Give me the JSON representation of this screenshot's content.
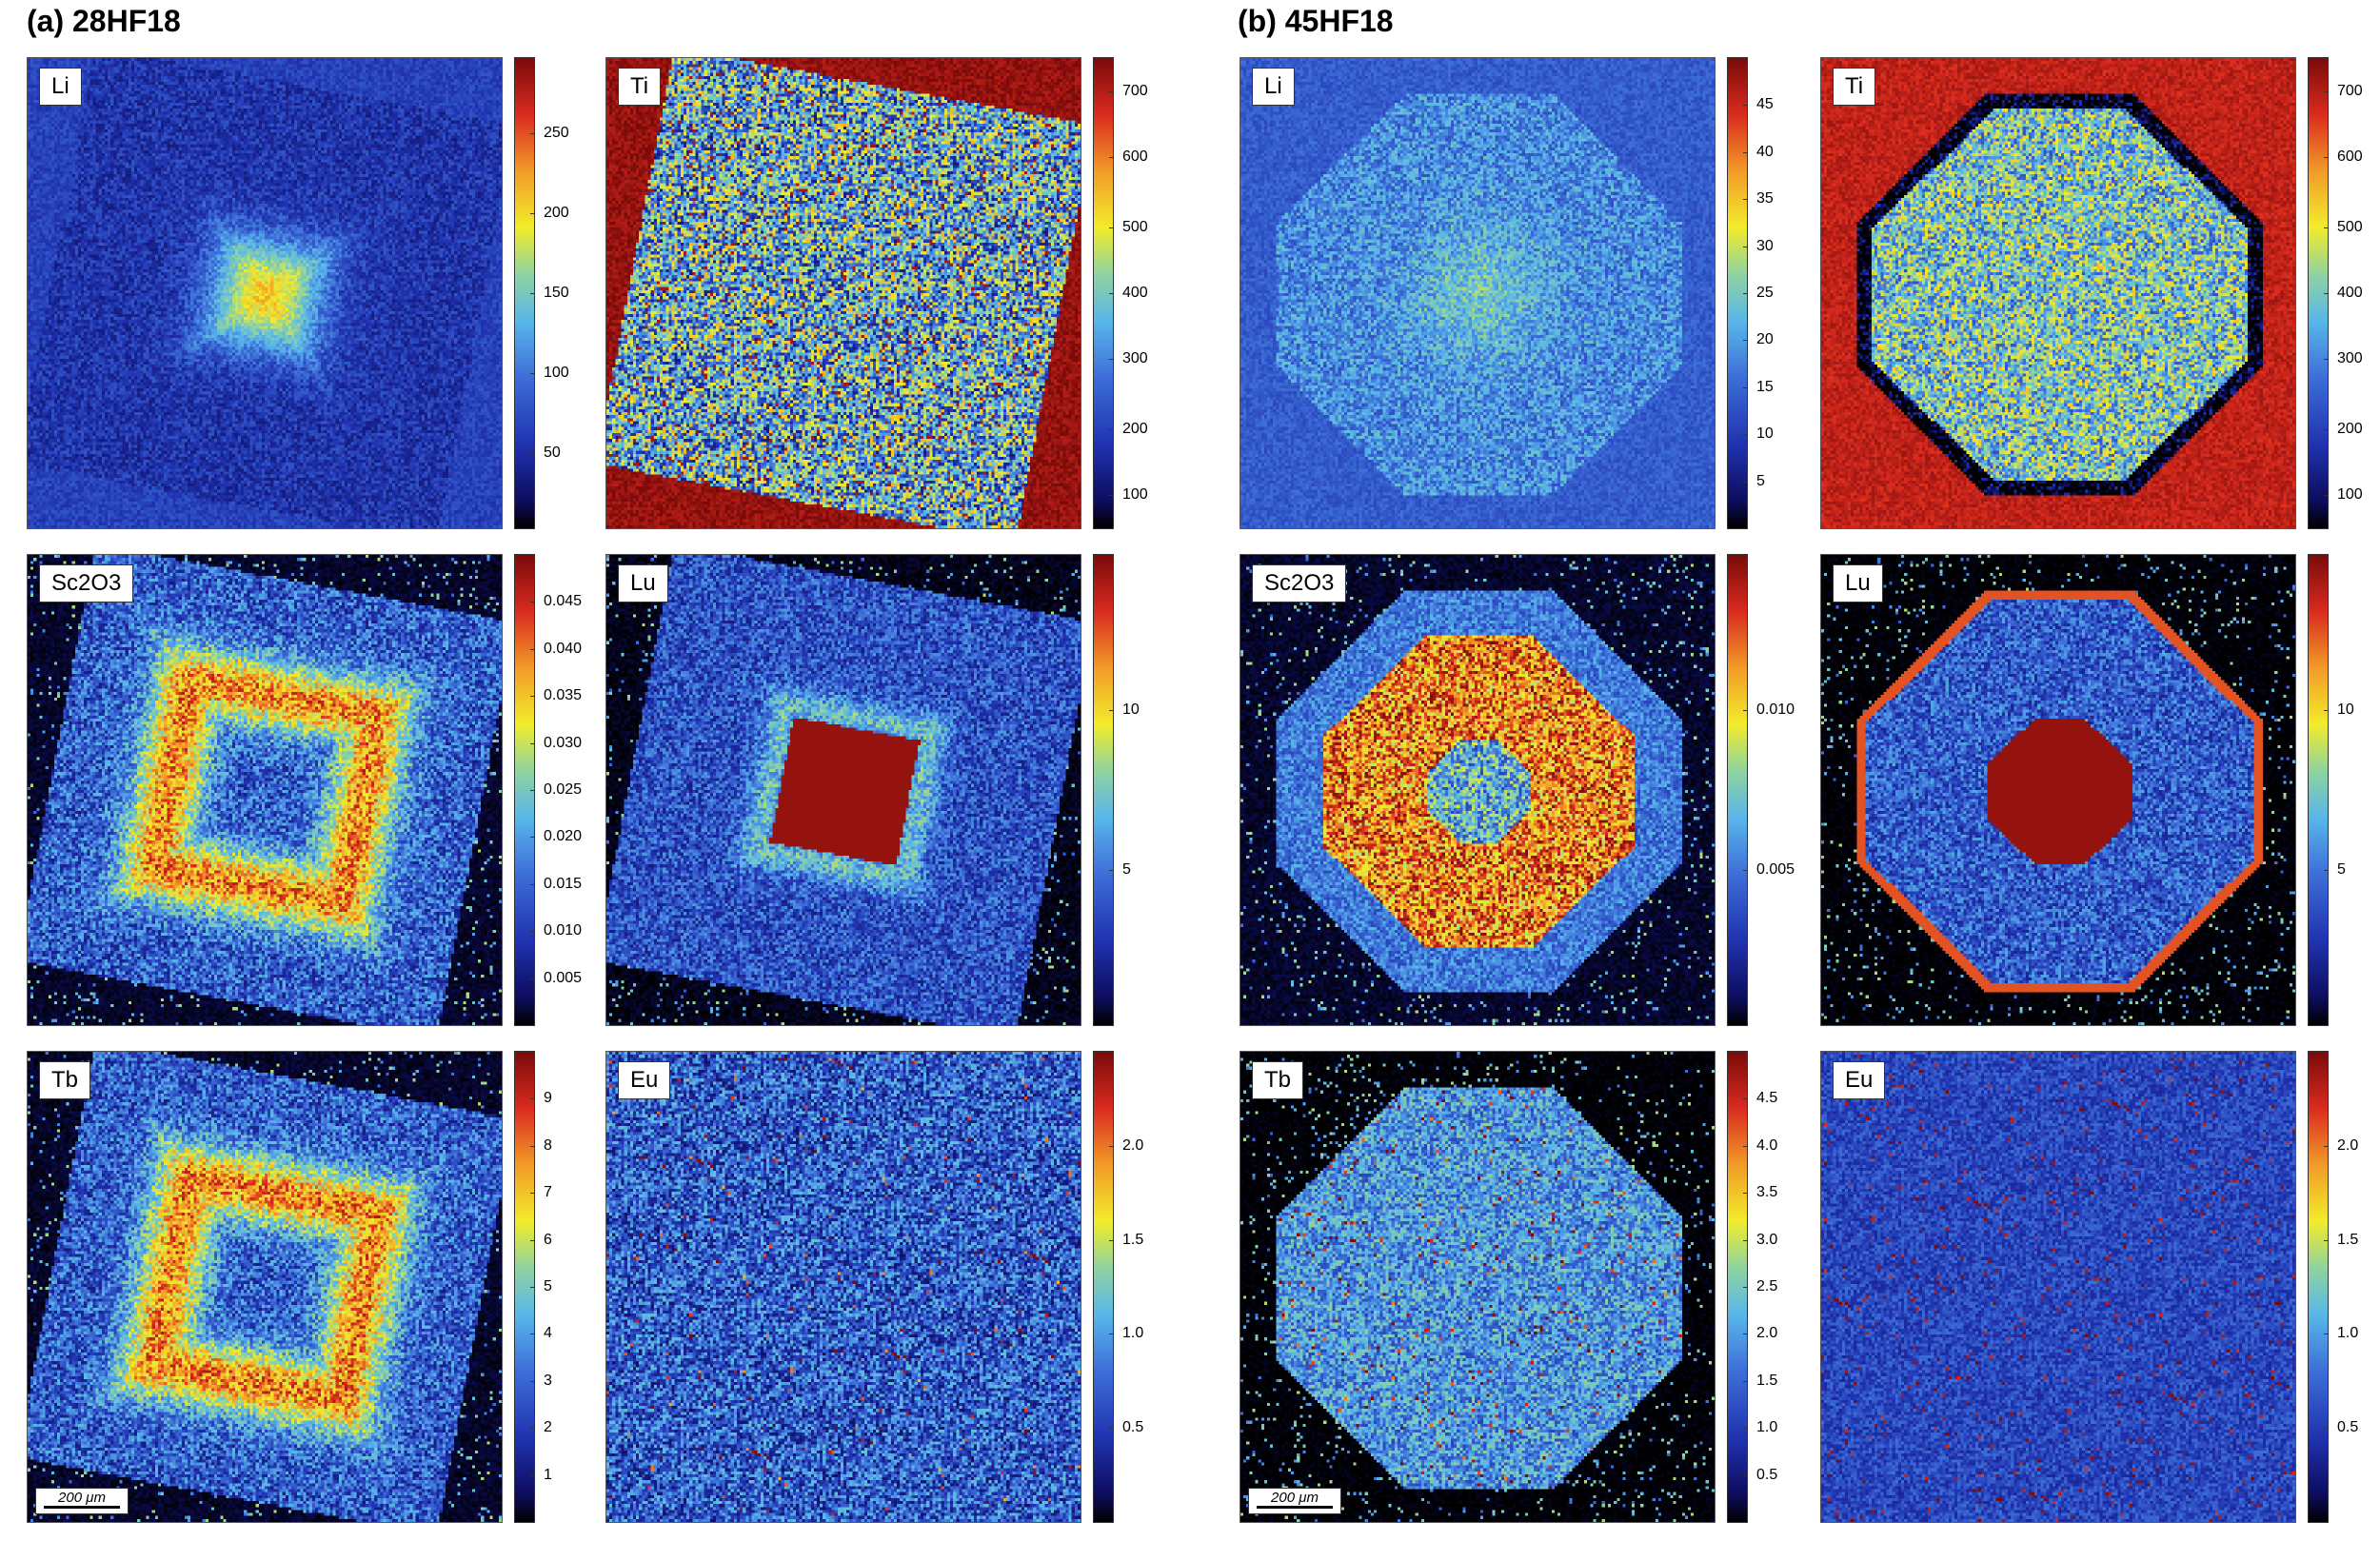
{
  "figure": {
    "panels": [
      {
        "id": "a",
        "title": "(a) 28HF18"
      },
      {
        "id": "b",
        "title": "(b) 45HF18"
      }
    ],
    "scalebar_label": "200 μm",
    "colormap": [
      "#000000",
      "#0d0d60",
      "#2033b0",
      "#3d6ed8",
      "#58b6ea",
      "#8fd3a0",
      "#f2ec2a",
      "#f29a28",
      "#d92b1e",
      "#7a0a0a"
    ],
    "maps": [
      {
        "panel": "a",
        "element": "Li",
        "ticks": [
          "50",
          "100",
          "150",
          "200",
          "250"
        ],
        "tickfrac": [
          0.16,
          0.33,
          0.5,
          0.67,
          0.84
        ],
        "pattern": "core",
        "shape": "square",
        "bg_level": 0.25
      },
      {
        "panel": "a",
        "element": "Ti",
        "ticks": [
          "100",
          "200",
          "300",
          "400",
          "500",
          "600",
          "700"
        ],
        "tickfrac": [
          0.07,
          0.21,
          0.36,
          0.5,
          0.64,
          0.79,
          0.93
        ],
        "pattern": "uniform_high",
        "shape": "square",
        "bg_level": 0.97
      },
      {
        "panel": "a",
        "element": "Sc2O3",
        "ticks": [
          "0.005",
          "0.010",
          "0.015",
          "0.020",
          "0.025",
          "0.030",
          "0.035",
          "0.040",
          "0.045"
        ],
        "tickfrac": [
          0.1,
          0.2,
          0.3,
          0.4,
          0.5,
          0.6,
          0.7,
          0.8,
          0.9
        ],
        "pattern": "ring",
        "shape": "square",
        "bg_level": 0.05
      },
      {
        "panel": "a",
        "element": "Lu",
        "ticks": [
          "5",
          "10"
        ],
        "tickfrac": [
          0.33,
          0.67
        ],
        "pattern": "hot_core",
        "shape": "square",
        "bg_level": 0.03
      },
      {
        "panel": "a",
        "element": "Tb",
        "ticks": [
          "1",
          "2",
          "3",
          "4",
          "5",
          "6",
          "7",
          "8",
          "9"
        ],
        "tickfrac": [
          0.1,
          0.2,
          0.3,
          0.4,
          0.5,
          0.6,
          0.7,
          0.8,
          0.9
        ],
        "pattern": "ring",
        "shape": "square",
        "bg_level": 0.05,
        "scalebar": true
      },
      {
        "panel": "a",
        "element": "Eu",
        "ticks": [
          "0.5",
          "1.0",
          "1.5",
          "2.0"
        ],
        "tickfrac": [
          0.2,
          0.4,
          0.6,
          0.8
        ],
        "pattern": "noise_low",
        "shape": "full",
        "bg_level": 0.28
      },
      {
        "panel": "b",
        "element": "Li",
        "ticks": [
          "5",
          "10",
          "15",
          "20",
          "25",
          "30",
          "35",
          "40",
          "45"
        ],
        "tickfrac": [
          0.1,
          0.2,
          0.3,
          0.4,
          0.5,
          0.6,
          0.7,
          0.8,
          0.9
        ],
        "pattern": "flat_mid",
        "shape": "octagon",
        "bg_level": 0.3
      },
      {
        "panel": "b",
        "element": "Ti",
        "ticks": [
          "100",
          "200",
          "300",
          "400",
          "500",
          "600",
          "700"
        ],
        "tickfrac": [
          0.07,
          0.21,
          0.36,
          0.5,
          0.64,
          0.79,
          0.93
        ],
        "pattern": "uniform_mid",
        "shape": "octagon",
        "bg_level": 0.92
      },
      {
        "panel": "b",
        "element": "Sc2O3",
        "ticks": [
          "0.005",
          "0.010"
        ],
        "tickfrac": [
          0.33,
          0.67
        ],
        "pattern": "hot_disc",
        "shape": "octagon",
        "bg_level": 0.05
      },
      {
        "panel": "b",
        "element": "Lu",
        "ticks": [
          "5",
          "10"
        ],
        "tickfrac": [
          0.33,
          0.67
        ],
        "pattern": "hot_core_rim",
        "shape": "octagon",
        "bg_level": 0.0
      },
      {
        "panel": "b",
        "element": "Tb",
        "ticks": [
          "0.5",
          "1.0",
          "1.5",
          "2.0",
          "2.5",
          "3.0",
          "3.5",
          "4.0",
          "4.5"
        ],
        "tickfrac": [
          0.1,
          0.2,
          0.3,
          0.4,
          0.5,
          0.6,
          0.7,
          0.8,
          0.9
        ],
        "pattern": "flat_mid_specks",
        "shape": "octagon",
        "bg_level": 0.0,
        "scalebar": true
      },
      {
        "panel": "b",
        "element": "Eu",
        "ticks": [
          "0.5",
          "1.0",
          "1.5",
          "2.0"
        ],
        "tickfrac": [
          0.2,
          0.4,
          0.6,
          0.8
        ],
        "pattern": "specks",
        "shape": "full",
        "bg_level": 0.22
      }
    ]
  }
}
